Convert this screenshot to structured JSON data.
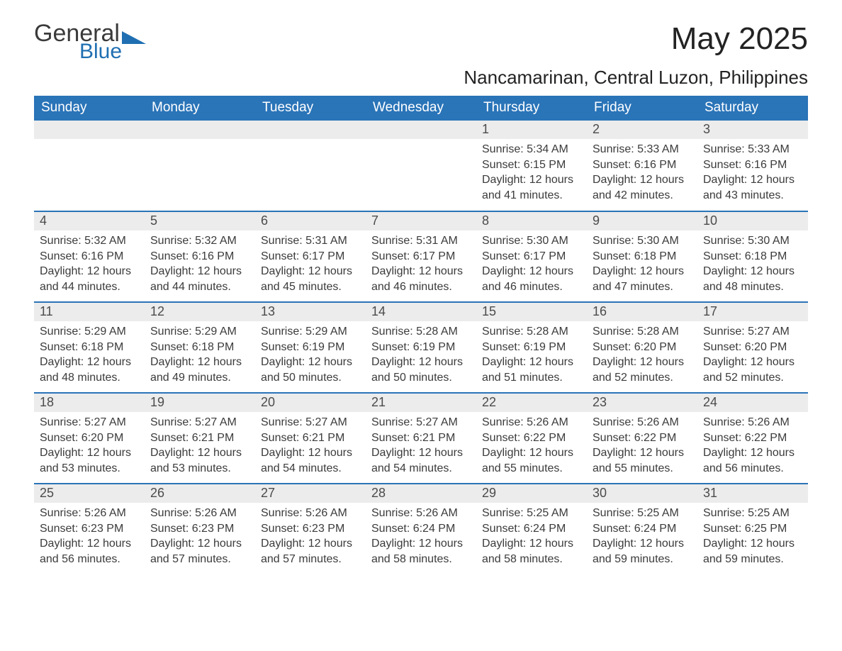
{
  "logo": {
    "word1": "General",
    "word2": "Blue"
  },
  "title": "May 2025",
  "location": "Nancamarinan, Central Luzon, Philippines",
  "colors": {
    "header_bg": "#2a74b8",
    "header_text": "#ffffff",
    "daynum_bg": "#ececec",
    "row_border": "#2a74b8",
    "body_text": "#3b3b3b",
    "logo_blue": "#1f6fb2"
  },
  "day_headers": [
    "Sunday",
    "Monday",
    "Tuesday",
    "Wednesday",
    "Thursday",
    "Friday",
    "Saturday"
  ],
  "weeks": [
    [
      null,
      null,
      null,
      null,
      {
        "n": "1",
        "sr": "5:34 AM",
        "ss": "6:15 PM",
        "dl": "12 hours and 41 minutes."
      },
      {
        "n": "2",
        "sr": "5:33 AM",
        "ss": "6:16 PM",
        "dl": "12 hours and 42 minutes."
      },
      {
        "n": "3",
        "sr": "5:33 AM",
        "ss": "6:16 PM",
        "dl": "12 hours and 43 minutes."
      }
    ],
    [
      {
        "n": "4",
        "sr": "5:32 AM",
        "ss": "6:16 PM",
        "dl": "12 hours and 44 minutes."
      },
      {
        "n": "5",
        "sr": "5:32 AM",
        "ss": "6:16 PM",
        "dl": "12 hours and 44 minutes."
      },
      {
        "n": "6",
        "sr": "5:31 AM",
        "ss": "6:17 PM",
        "dl": "12 hours and 45 minutes."
      },
      {
        "n": "7",
        "sr": "5:31 AM",
        "ss": "6:17 PM",
        "dl": "12 hours and 46 minutes."
      },
      {
        "n": "8",
        "sr": "5:30 AM",
        "ss": "6:17 PM",
        "dl": "12 hours and 46 minutes."
      },
      {
        "n": "9",
        "sr": "5:30 AM",
        "ss": "6:18 PM",
        "dl": "12 hours and 47 minutes."
      },
      {
        "n": "10",
        "sr": "5:30 AM",
        "ss": "6:18 PM",
        "dl": "12 hours and 48 minutes."
      }
    ],
    [
      {
        "n": "11",
        "sr": "5:29 AM",
        "ss": "6:18 PM",
        "dl": "12 hours and 48 minutes."
      },
      {
        "n": "12",
        "sr": "5:29 AM",
        "ss": "6:18 PM",
        "dl": "12 hours and 49 minutes."
      },
      {
        "n": "13",
        "sr": "5:29 AM",
        "ss": "6:19 PM",
        "dl": "12 hours and 50 minutes."
      },
      {
        "n": "14",
        "sr": "5:28 AM",
        "ss": "6:19 PM",
        "dl": "12 hours and 50 minutes."
      },
      {
        "n": "15",
        "sr": "5:28 AM",
        "ss": "6:19 PM",
        "dl": "12 hours and 51 minutes."
      },
      {
        "n": "16",
        "sr": "5:28 AM",
        "ss": "6:20 PM",
        "dl": "12 hours and 52 minutes."
      },
      {
        "n": "17",
        "sr": "5:27 AM",
        "ss": "6:20 PM",
        "dl": "12 hours and 52 minutes."
      }
    ],
    [
      {
        "n": "18",
        "sr": "5:27 AM",
        "ss": "6:20 PM",
        "dl": "12 hours and 53 minutes."
      },
      {
        "n": "19",
        "sr": "5:27 AM",
        "ss": "6:21 PM",
        "dl": "12 hours and 53 minutes."
      },
      {
        "n": "20",
        "sr": "5:27 AM",
        "ss": "6:21 PM",
        "dl": "12 hours and 54 minutes."
      },
      {
        "n": "21",
        "sr": "5:27 AM",
        "ss": "6:21 PM",
        "dl": "12 hours and 54 minutes."
      },
      {
        "n": "22",
        "sr": "5:26 AM",
        "ss": "6:22 PM",
        "dl": "12 hours and 55 minutes."
      },
      {
        "n": "23",
        "sr": "5:26 AM",
        "ss": "6:22 PM",
        "dl": "12 hours and 55 minutes."
      },
      {
        "n": "24",
        "sr": "5:26 AM",
        "ss": "6:22 PM",
        "dl": "12 hours and 56 minutes."
      }
    ],
    [
      {
        "n": "25",
        "sr": "5:26 AM",
        "ss": "6:23 PM",
        "dl": "12 hours and 56 minutes."
      },
      {
        "n": "26",
        "sr": "5:26 AM",
        "ss": "6:23 PM",
        "dl": "12 hours and 57 minutes."
      },
      {
        "n": "27",
        "sr": "5:26 AM",
        "ss": "6:23 PM",
        "dl": "12 hours and 57 minutes."
      },
      {
        "n": "28",
        "sr": "5:26 AM",
        "ss": "6:24 PM",
        "dl": "12 hours and 58 minutes."
      },
      {
        "n": "29",
        "sr": "5:25 AM",
        "ss": "6:24 PM",
        "dl": "12 hours and 58 minutes."
      },
      {
        "n": "30",
        "sr": "5:25 AM",
        "ss": "6:24 PM",
        "dl": "12 hours and 59 minutes."
      },
      {
        "n": "31",
        "sr": "5:25 AM",
        "ss": "6:25 PM",
        "dl": "12 hours and 59 minutes."
      }
    ]
  ],
  "labels": {
    "sunrise": "Sunrise:",
    "sunset": "Sunset:",
    "daylight": "Daylight:"
  }
}
